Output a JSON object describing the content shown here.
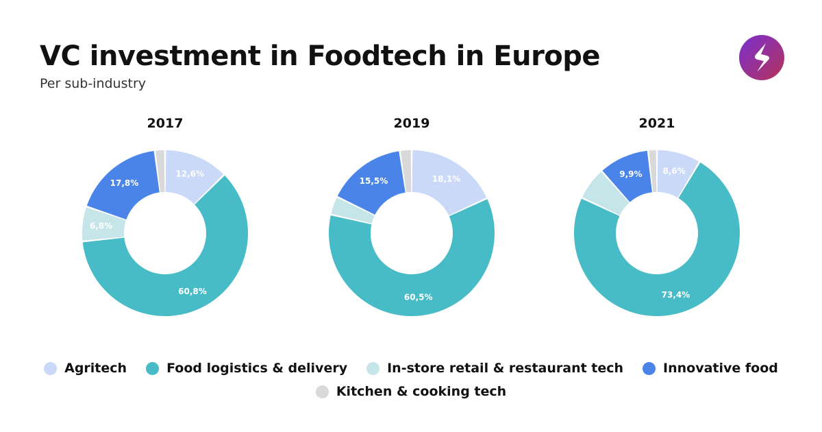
{
  "header": {
    "title": "VC investment in Foodtech in Europe",
    "subtitle": "Per sub-industry"
  },
  "brand": {
    "logo_icon": "lightning-s-logo-icon",
    "gradient": [
      "#7a2fd0",
      "#b4335a"
    ]
  },
  "legend": {
    "items": [
      {
        "label": "Agritech",
        "color": "#c9d9f7"
      },
      {
        "label": "Food logistics & delivery",
        "color": "#47bcc6"
      },
      {
        "label": "In-store retail & restaurant tech",
        "color": "#c6e5e8"
      },
      {
        "label": "Innovative food",
        "color": "#4a84e8"
      },
      {
        "label": "Kitchen & cooking tech",
        "color": "#d9d9d9"
      }
    ]
  },
  "chart_data": [
    {
      "type": "pie",
      "title": "2017",
      "categories": [
        "Agritech",
        "Food logistics & delivery",
        "In-store retail & restaurant tech",
        "Innovative food",
        "Kitchen & cooking tech"
      ],
      "values": [
        12.6,
        60.8,
        6.8,
        17.8,
        2.0
      ],
      "labels": [
        "12,6%",
        "60,8%",
        "6,8%",
        "17,8%",
        ""
      ]
    },
    {
      "type": "pie",
      "title": "2019",
      "categories": [
        "Agritech",
        "Food logistics & delivery",
        "In-store retail & restaurant tech",
        "Innovative food",
        "Kitchen & cooking tech"
      ],
      "values": [
        18.1,
        60.5,
        3.6,
        15.5,
        2.3
      ],
      "labels": [
        "18,1%",
        "60,5%",
        "",
        "15,5%",
        ""
      ]
    },
    {
      "type": "pie",
      "title": "2021",
      "categories": [
        "Agritech",
        "Food logistics & delivery",
        "In-store retail & restaurant tech",
        "Innovative food",
        "Kitchen & cooking tech"
      ],
      "values": [
        8.6,
        73.4,
        6.4,
        9.9,
        1.7
      ],
      "labels": [
        "8,6%",
        "73,4%",
        "",
        "9,9%",
        ""
      ]
    }
  ]
}
